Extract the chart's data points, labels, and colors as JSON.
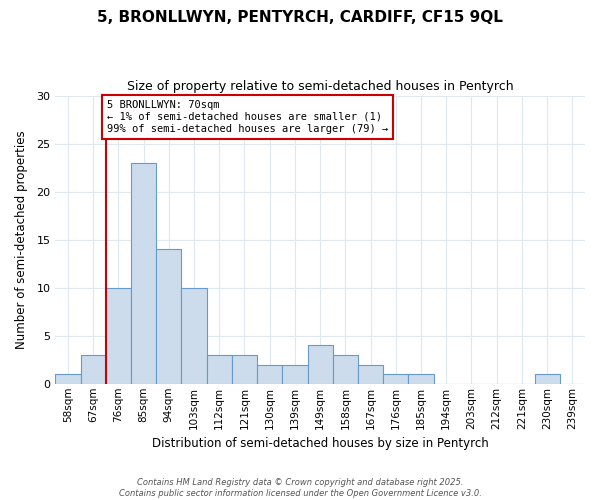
{
  "title1": "5, BRONLLWYN, PENTYRCH, CARDIFF, CF15 9QL",
  "title2": "Size of property relative to semi-detached houses in Pentyrch",
  "xlabel": "Distribution of semi-detached houses by size in Pentyrch",
  "ylabel": "Number of semi-detached properties",
  "bin_labels": [
    "58sqm",
    "67sqm",
    "76sqm",
    "85sqm",
    "94sqm",
    "103sqm",
    "112sqm",
    "121sqm",
    "130sqm",
    "139sqm",
    "149sqm",
    "158sqm",
    "167sqm",
    "176sqm",
    "185sqm",
    "194sqm",
    "203sqm",
    "212sqm",
    "221sqm",
    "230sqm",
    "239sqm"
  ],
  "bar_heights": [
    1,
    3,
    10,
    23,
    14,
    10,
    3,
    3,
    2,
    2,
    4,
    3,
    2,
    1,
    1,
    0,
    0,
    0,
    0,
    1,
    0
  ],
  "bar_color": "#ccdcec",
  "bar_edge_color": "#6699cc",
  "red_line_x": 1.5,
  "annotation_text": "5 BRONLLWYN: 70sqm\n← 1% of semi-detached houses are smaller (1)\n99% of semi-detached houses are larger (79) →",
  "annotation_box_color": "#ffffff",
  "annotation_box_edge": "#cc0000",
  "red_line_color": "#cc0000",
  "ylim": [
    0,
    30
  ],
  "yticks": [
    0,
    5,
    10,
    15,
    20,
    25,
    30
  ],
  "footer_text": "Contains HM Land Registry data © Crown copyright and database right 2025.\nContains public sector information licensed under the Open Government Licence v3.0.",
  "background_color": "#ffffff",
  "grid_color": "#dde8f0",
  "title1_fontsize": 11,
  "title2_fontsize": 9
}
